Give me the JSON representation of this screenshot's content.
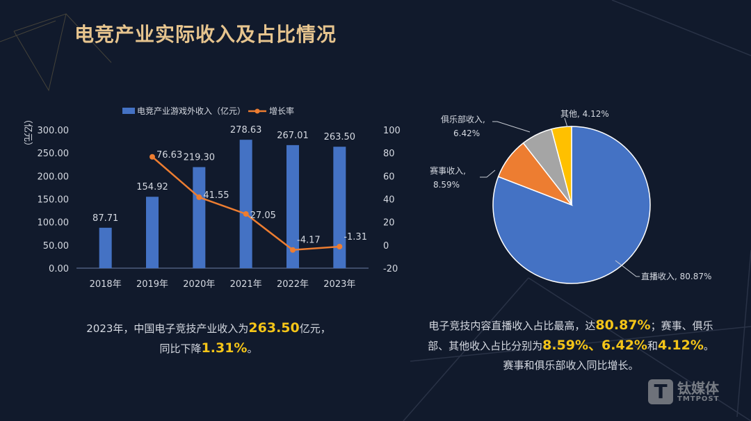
{
  "title": "电竞产业实际收入及占比情况",
  "chart_data": [
    {
      "type": "bar+line",
      "categories": [
        "2018年",
        "2019年",
        "2020年",
        "2021年",
        "2022年",
        "2023年"
      ],
      "series": [
        {
          "name": "电竞产业游戏外收入（亿元）",
          "type": "bar",
          "axis": "left",
          "color": "#4472c4",
          "values": [
            87.71,
            154.92,
            219.3,
            278.63,
            267.01,
            263.5
          ],
          "labels": [
            "87.71",
            "154.92",
            "219.30",
            "278.63",
            "267.01",
            "263.50"
          ]
        },
        {
          "name": "增长率",
          "type": "line",
          "axis": "right",
          "color": "#ed7d31",
          "values": [
            null,
            76.63,
            41.55,
            27.05,
            -4.17,
            -1.31
          ],
          "labels": [
            "",
            "76.63",
            "41.55",
            "27.05",
            "-4.17",
            "-1.31"
          ]
        }
      ],
      "ylabel": "（亿元）",
      "y2label": "（%）",
      "ylim": [
        0,
        300
      ],
      "yticks": [
        "0.00",
        "50.00",
        "100.00",
        "150.00",
        "200.00",
        "250.00",
        "300.00"
      ],
      "y2lim": [
        -20,
        100
      ],
      "y2ticks": [
        "-20",
        "0",
        "20",
        "40",
        "60",
        "80",
        "100"
      ],
      "legend": "top",
      "grid": false
    },
    {
      "type": "pie",
      "slices": [
        {
          "label": "直播收入",
          "value": 80.87,
          "text": "直播收入, 80.87%",
          "color": "#4472c4"
        },
        {
          "label": "赛事收入",
          "value": 8.59,
          "text": "赛事收入,\n8.59%",
          "color": "#ed7d31"
        },
        {
          "label": "俱乐部收入",
          "value": 6.42,
          "text": "俱乐部收入,\n6.42%",
          "color": "#a5a5a5"
        },
        {
          "label": "其他",
          "value": 4.12,
          "text": "其他, 4.12%",
          "color": "#ffc000"
        }
      ]
    }
  ],
  "caption_left": {
    "a": "2023年，中国电子竞技产业收入为",
    "b": "263.50",
    "c": "亿元，",
    "d": "同比下降",
    "e": "1.31%",
    "f": "。"
  },
  "caption_right": {
    "a": "电子竞技内容直播收入占比最高，达",
    "b": "80.87%",
    "c": "；赛事、俱乐",
    "d": "部、其他收入占比分别为",
    "e": "8.59%",
    "f": "、",
    "g": "6.42%",
    "h": "和",
    "i": "4.12%",
    "j": "。",
    "k": "赛事和俱乐部收入同比增长。"
  },
  "logo": {
    "mark": "T",
    "cn": "钛媒体",
    "en": "TMTPOST"
  }
}
